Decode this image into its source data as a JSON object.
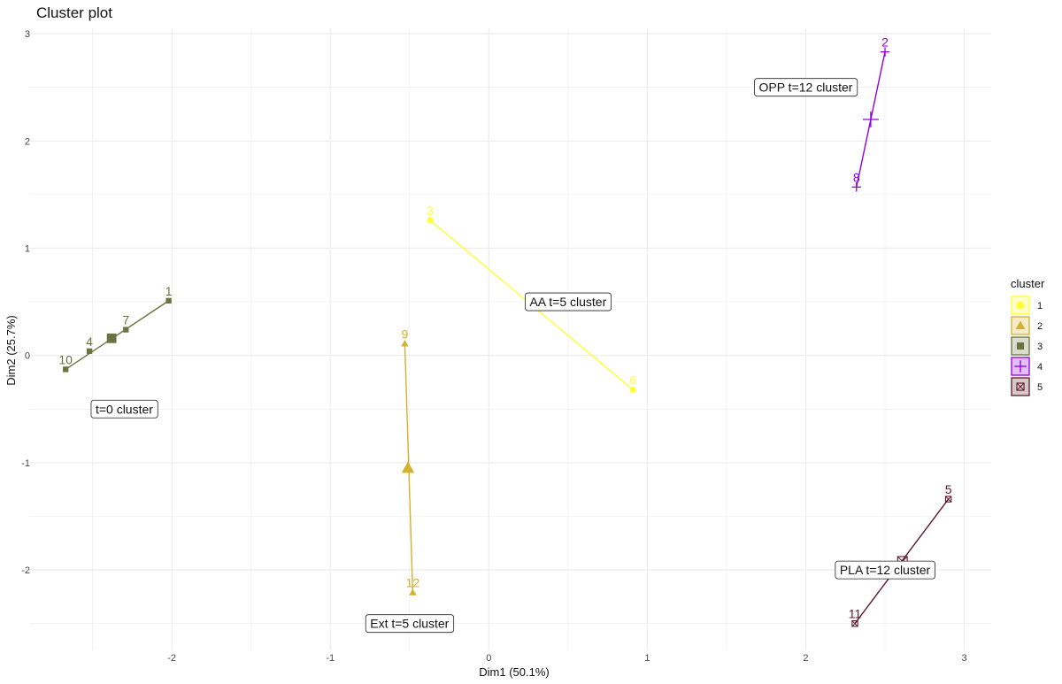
{
  "chart_data": {
    "type": "scatter",
    "title": "Cluster plot",
    "xlabel": "Dim1 (50.1%)",
    "ylabel": "Dim2 (25.7%)",
    "xlim": [
      -2.9,
      3.17
    ],
    "ylim": [
      -2.75,
      3.05
    ],
    "xticks": [
      -2,
      -1,
      0,
      1,
      2,
      3
    ],
    "yticks": [
      -2,
      -1,
      0,
      1,
      2,
      3
    ],
    "grid": true,
    "legend": {
      "title": "cluster",
      "position": "right",
      "entries": [
        "1",
        "2",
        "3",
        "4",
        "5"
      ]
    },
    "clusters": [
      {
        "name": "1",
        "color": "#FFFF33",
        "shape": "circle",
        "points": [
          {
            "label": "3",
            "x": -0.37,
            "y": 1.26
          },
          {
            "label": "6",
            "x": 0.91,
            "y": -0.32
          }
        ],
        "hull": [
          [
            "3",
            "6"
          ]
        ],
        "center": null,
        "annotation": {
          "text": "AA t=5 cluster",
          "x": 0.5,
          "y": 0.5
        }
      },
      {
        "name": "2",
        "color": "#D4B12E",
        "shape": "triangle",
        "points": [
          {
            "label": "9",
            "x": -0.53,
            "y": 0.11
          },
          {
            "label": "12",
            "x": -0.48,
            "y": -2.21
          }
        ],
        "hull": [
          [
            "9",
            "12"
          ]
        ],
        "center": {
          "x": -0.51,
          "y": -1.05
        },
        "annotation": {
          "text": "Ext t=5 cluster",
          "x": -0.5,
          "y": -2.5
        }
      },
      {
        "name": "3",
        "color": "#6B7340",
        "shape": "square",
        "points": [
          {
            "label": "1",
            "x": -2.02,
            "y": 0.51
          },
          {
            "label": "4",
            "x": -2.52,
            "y": 0.04
          },
          {
            "label": "7",
            "x": -2.29,
            "y": 0.24
          },
          {
            "label": "10",
            "x": -2.67,
            "y": -0.13
          }
        ],
        "hull": [
          [
            "1",
            "10"
          ]
        ],
        "center": {
          "x": -2.38,
          "y": 0.16
        },
        "annotation": {
          "text": "t=0 cluster",
          "x": -2.3,
          "y": -0.5
        }
      },
      {
        "name": "4",
        "color": "#8E00E0",
        "shape": "plus",
        "points": [
          {
            "label": "2",
            "x": 2.5,
            "y": 2.83
          },
          {
            "label": "8",
            "x": 2.32,
            "y": 1.57
          }
        ],
        "hull": [
          [
            "2",
            "8"
          ]
        ],
        "center": {
          "x": 2.41,
          "y": 2.2
        },
        "annotation": {
          "text": "OPP t=12 cluster",
          "x": 2.0,
          "y": 2.5
        }
      },
      {
        "name": "5",
        "color": "#5E1A2B",
        "shape": "boxcross",
        "points": [
          {
            "label": "5",
            "x": 2.9,
            "y": -1.34
          },
          {
            "label": "11",
            "x": 2.31,
            "y": -2.5
          }
        ],
        "hull": [
          [
            "5",
            "11"
          ]
        ],
        "center": {
          "x": 2.61,
          "y": -1.92
        },
        "annotation": {
          "text": "PLA t=12 cluster",
          "x": 2.5,
          "y": -2.0
        }
      }
    ]
  }
}
